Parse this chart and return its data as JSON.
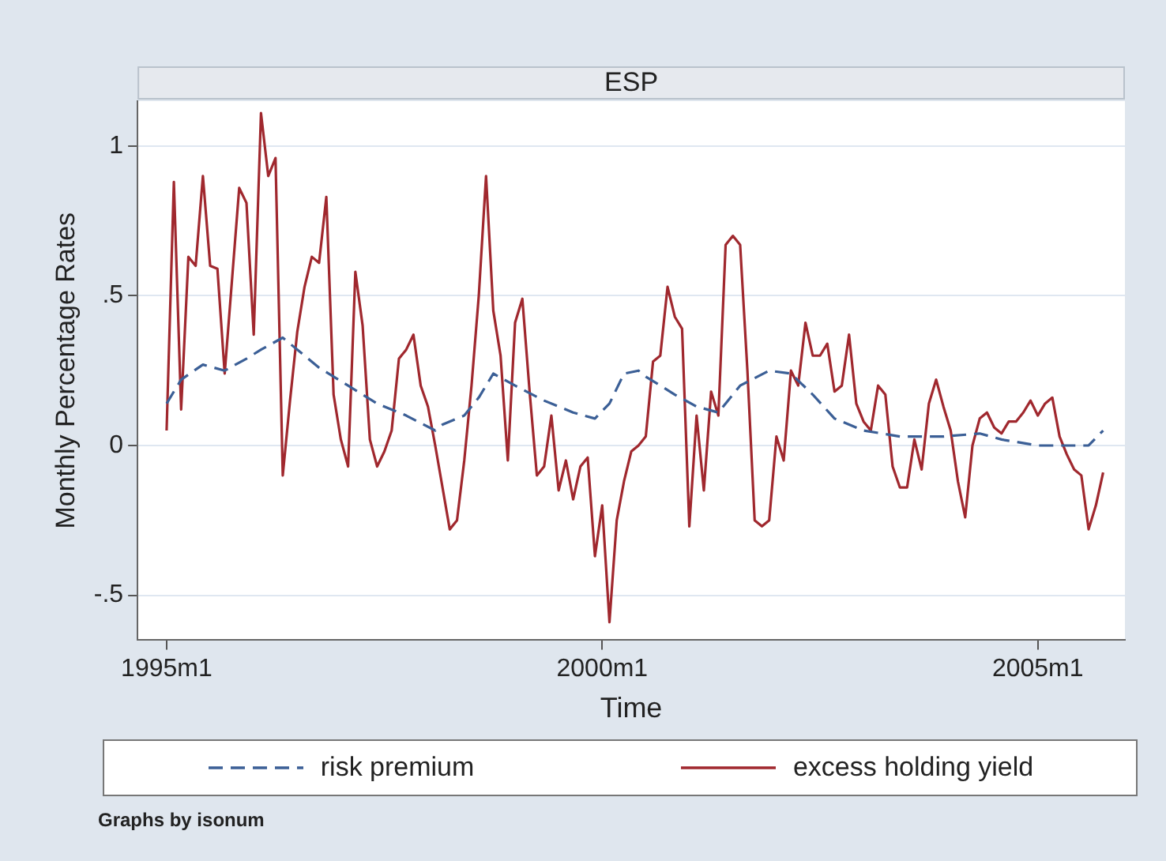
{
  "chart_data": {
    "type": "line",
    "title": "ESP",
    "xlabel": "Time",
    "ylabel": "Monthly Percentage Rates",
    "x": [
      "1995-01",
      "1995-02",
      "1995-03",
      "1995-04",
      "1995-05",
      "1995-06",
      "1995-07",
      "1995-08",
      "1995-09",
      "1995-10",
      "1995-11",
      "1995-12",
      "1996-01",
      "1996-02",
      "1996-03",
      "1996-04",
      "1996-05",
      "1996-06",
      "1996-07",
      "1996-08",
      "1996-09",
      "1996-10",
      "1996-11",
      "1996-12",
      "1997-01",
      "1997-02",
      "1997-03",
      "1997-04",
      "1997-05",
      "1997-06",
      "1997-07",
      "1997-08",
      "1997-09",
      "1997-10",
      "1997-11",
      "1997-12",
      "1998-01",
      "1998-02",
      "1998-03",
      "1998-04",
      "1998-05",
      "1998-06",
      "1998-07",
      "1998-08",
      "1998-09",
      "1998-10",
      "1998-11",
      "1998-12",
      "1999-01",
      "1999-02",
      "1999-03",
      "1999-04",
      "1999-05",
      "1999-06",
      "1999-07",
      "1999-08",
      "1999-09",
      "1999-10",
      "1999-11",
      "1999-12",
      "2000-01",
      "2000-02",
      "2000-03",
      "2000-04",
      "2000-05",
      "2000-06",
      "2000-07",
      "2000-08",
      "2000-09",
      "2000-10",
      "2000-11",
      "2000-12",
      "2001-01",
      "2001-02",
      "2001-03",
      "2001-04",
      "2001-05",
      "2001-06",
      "2001-07",
      "2001-08",
      "2001-09",
      "2001-10",
      "2001-11",
      "2001-12",
      "2002-01",
      "2002-02",
      "2002-03",
      "2002-04",
      "2002-05",
      "2002-06",
      "2002-07",
      "2002-08",
      "2002-09",
      "2002-10",
      "2002-11",
      "2002-12",
      "2003-01",
      "2003-02",
      "2003-03",
      "2003-04",
      "2003-05",
      "2003-06",
      "2003-07",
      "2003-08",
      "2003-09",
      "2003-10",
      "2003-11",
      "2003-12",
      "2004-01",
      "2004-02",
      "2004-03",
      "2004-04",
      "2004-05",
      "2004-06",
      "2004-07",
      "2004-08",
      "2004-09",
      "2004-10",
      "2004-11",
      "2004-12",
      "2005-01",
      "2005-02",
      "2005-03",
      "2005-04",
      "2005-05",
      "2005-06",
      "2005-07",
      "2005-08",
      "2005-09",
      "2005-10"
    ],
    "series": [
      {
        "name": "risk premium",
        "color": "#3b5f96",
        "line_style": "dashed",
        "x": [
          "1995-01",
          "1995-03",
          "1995-06",
          "1995-09",
          "1995-12",
          "1996-02",
          "1996-05",
          "1996-06",
          "1996-10",
          "1997-02",
          "1997-06",
          "1997-10",
          "1998-02",
          "1998-03",
          "1998-06",
          "1998-08",
          "1998-10",
          "1999-01",
          "1999-05",
          "1999-09",
          "1999-12",
          "2000-02",
          "2000-04",
          "2000-06",
          "2000-07",
          "2000-11",
          "2001-02",
          "2001-05",
          "2001-08",
          "2001-12",
          "2002-03",
          "2002-06",
          "2002-09",
          "2003-01",
          "2003-06",
          "2003-12",
          "2004-05",
          "2004-08",
          "2005-01",
          "2005-08",
          "2005-10"
        ],
        "values": [
          0.14,
          0.22,
          0.27,
          0.25,
          0.29,
          0.32,
          0.36,
          0.34,
          0.26,
          0.2,
          0.14,
          0.1,
          0.05,
          0.07,
          0.1,
          0.16,
          0.24,
          0.2,
          0.15,
          0.11,
          0.09,
          0.14,
          0.24,
          0.25,
          0.23,
          0.17,
          0.13,
          0.11,
          0.2,
          0.25,
          0.24,
          0.17,
          0.09,
          0.05,
          0.03,
          0.03,
          0.04,
          0.02,
          0.0,
          0.0,
          0.05
        ]
      },
      {
        "name": "excess holding yield",
        "color": "#a0282e",
        "line_style": "solid",
        "values": [
          0.05,
          0.88,
          0.12,
          0.63,
          0.6,
          0.9,
          0.6,
          0.59,
          0.24,
          0.55,
          0.86,
          0.81,
          0.37,
          1.11,
          0.9,
          0.96,
          -0.1,
          0.15,
          0.38,
          0.53,
          0.63,
          0.61,
          0.83,
          0.17,
          0.02,
          -0.07,
          0.58,
          0.4,
          0.02,
          -0.07,
          -0.02,
          0.05,
          0.29,
          0.32,
          0.37,
          0.2,
          0.13,
          0.0,
          -0.14,
          -0.28,
          -0.25,
          -0.05,
          0.2,
          0.5,
          0.9,
          0.45,
          0.3,
          -0.05,
          0.41,
          0.49,
          0.18,
          -0.1,
          -0.07,
          0.1,
          -0.15,
          -0.05,
          -0.18,
          -0.07,
          -0.04,
          -0.37,
          -0.2,
          -0.59,
          -0.25,
          -0.12,
          -0.02,
          0.0,
          0.03,
          0.28,
          0.3,
          0.53,
          0.43,
          0.39,
          -0.27,
          0.1,
          -0.15,
          0.18,
          0.1,
          0.67,
          0.7,
          0.67,
          0.25,
          -0.25,
          -0.27,
          -0.25,
          0.03,
          -0.05,
          0.25,
          0.2,
          0.41,
          0.3,
          0.3,
          0.34,
          0.18,
          0.2,
          0.37,
          0.14,
          0.08,
          0.05,
          0.2,
          0.17,
          -0.07,
          -0.14,
          -0.14,
          0.02,
          -0.08,
          0.14,
          0.22,
          0.13,
          0.05,
          -0.12,
          -0.24,
          0.0,
          0.09,
          0.11,
          0.06,
          0.04,
          0.08,
          0.08,
          0.11,
          0.15,
          0.1,
          0.14,
          0.16,
          0.03,
          -0.03,
          -0.08,
          -0.1,
          -0.28,
          -0.2,
          -0.09
        ]
      }
    ],
    "xlim": [
      "1994-09",
      "2006-01"
    ],
    "xticks": [
      {
        "value": "1995-01",
        "label": "1995m1"
      },
      {
        "value": "2000-01",
        "label": "2000m1"
      },
      {
        "value": "2005-01",
        "label": "2005m1"
      }
    ],
    "ylim": [
      -0.65,
      1.15
    ],
    "yticks": [
      {
        "value": -0.5,
        "label": "-.5"
      },
      0,
      {
        "value": 0.5,
        "label": ".5"
      },
      1
    ],
    "grid": "y",
    "legend": "bottom",
    "annotations": [
      "Graphs by isonum"
    ]
  }
}
